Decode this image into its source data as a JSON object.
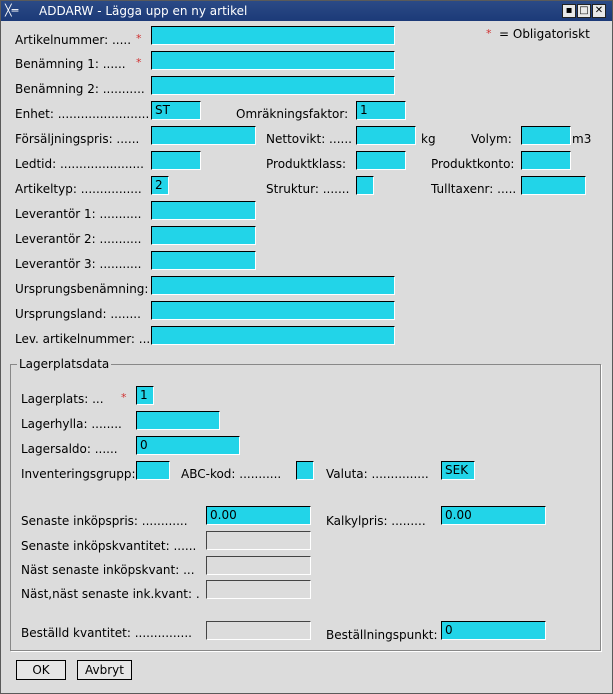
{
  "window": {
    "title": "ADDARW - Lägga upp en ny artikel",
    "icon": "X-logo-icon"
  },
  "required_note": {
    "star": "*",
    "text": "= Obligatoriskt"
  },
  "labels": {
    "artikelnummer": "Artikelnummer: .....",
    "benamning1": "Benämning 1: ......",
    "benamning2": "Benämning 2: ...........",
    "enhet": "Enhet: ........................",
    "omrakningsfaktor": "Omräkningsfaktor:",
    "forsaljningspris": "Försäljningspris: ......",
    "nettovikt": "Nettovikt: ......",
    "kg": "kg",
    "volym": "Volym:",
    "m3": "m3",
    "ledtid": "Ledtid: ......................",
    "produktklass": "Produktklass:",
    "produktkonto": "Produktkonto:",
    "artikeltyp": "Artikeltyp: ................",
    "struktur": "Struktur: .......",
    "tulltaxenr": "Tulltaxenr: .....",
    "leverantor1": "Leverantör 1: ...........",
    "leverantor2": "Leverantör 2: ...........",
    "leverantor3": "Leverantör 3: ...........",
    "ursprungsbenamning": "Ursprungsbenämning:",
    "ursprungsland": "Ursprungsland: ........",
    "levartikelnummer": "Lev. artikelnummer: ..."
  },
  "values": {
    "artikelnummer": "",
    "benamning1": "",
    "benamning2": "",
    "enhet": "ST",
    "omrakningsfaktor": "1",
    "forsaljningspris": "",
    "nettovikt": "",
    "volym": "",
    "ledtid": "",
    "produktklass": "",
    "produktkonto": "",
    "artikeltyp": "2",
    "struktur": "",
    "tulltaxenr": "",
    "leverantor1": "",
    "leverantor2": "",
    "leverantor3": "",
    "ursprungsbenamning": "",
    "ursprungsland": "",
    "levartikelnummer": ""
  },
  "lager": {
    "title": "Lagerplatsdata",
    "labels": {
      "lagerplats": "Lagerplats: ...",
      "lagerhylla": "Lagerhylla: ........",
      "lagersaldo": "Lagersaldo: ......",
      "inventeringsgrupp": "Inventeringsgrupp:",
      "abckod": "ABC-kod: ...........",
      "valuta": "Valuta: ...............",
      "senaste_inkopspris": "Senaste inköpspris: ............",
      "kalkylpris": "Kalkylpris: .........",
      "senaste_inkopskvantitet": "Senaste inköpskvantitet: ......",
      "nast_senaste": "Näst senaste inköpskvant: ...",
      "nast_nast_senaste": "Näst,näst senaste ink.kvant: .",
      "bestalld_kvantitet": "Beställd kvantitet: ...............",
      "bestallningspunkt": "Beställningspunkt:"
    },
    "values": {
      "lagerplats": "1",
      "lagerhylla": "",
      "lagersaldo": "0",
      "inventeringsgrupp": "",
      "abckod": "",
      "valuta": "SEK",
      "senaste_inkopspris": "0.00",
      "kalkylpris": "0.00",
      "senaste_inkopskvantitet": "",
      "nast_senaste": "",
      "nast_nast_senaste": "",
      "bestalld_kvantitet": "",
      "bestallningspunkt": "0"
    }
  },
  "buttons": {
    "ok": "OK",
    "avbryt": "Avbryt"
  },
  "colors": {
    "field": "#22d4e8",
    "titlebar": "#1c3a78",
    "required": "#d03030"
  }
}
